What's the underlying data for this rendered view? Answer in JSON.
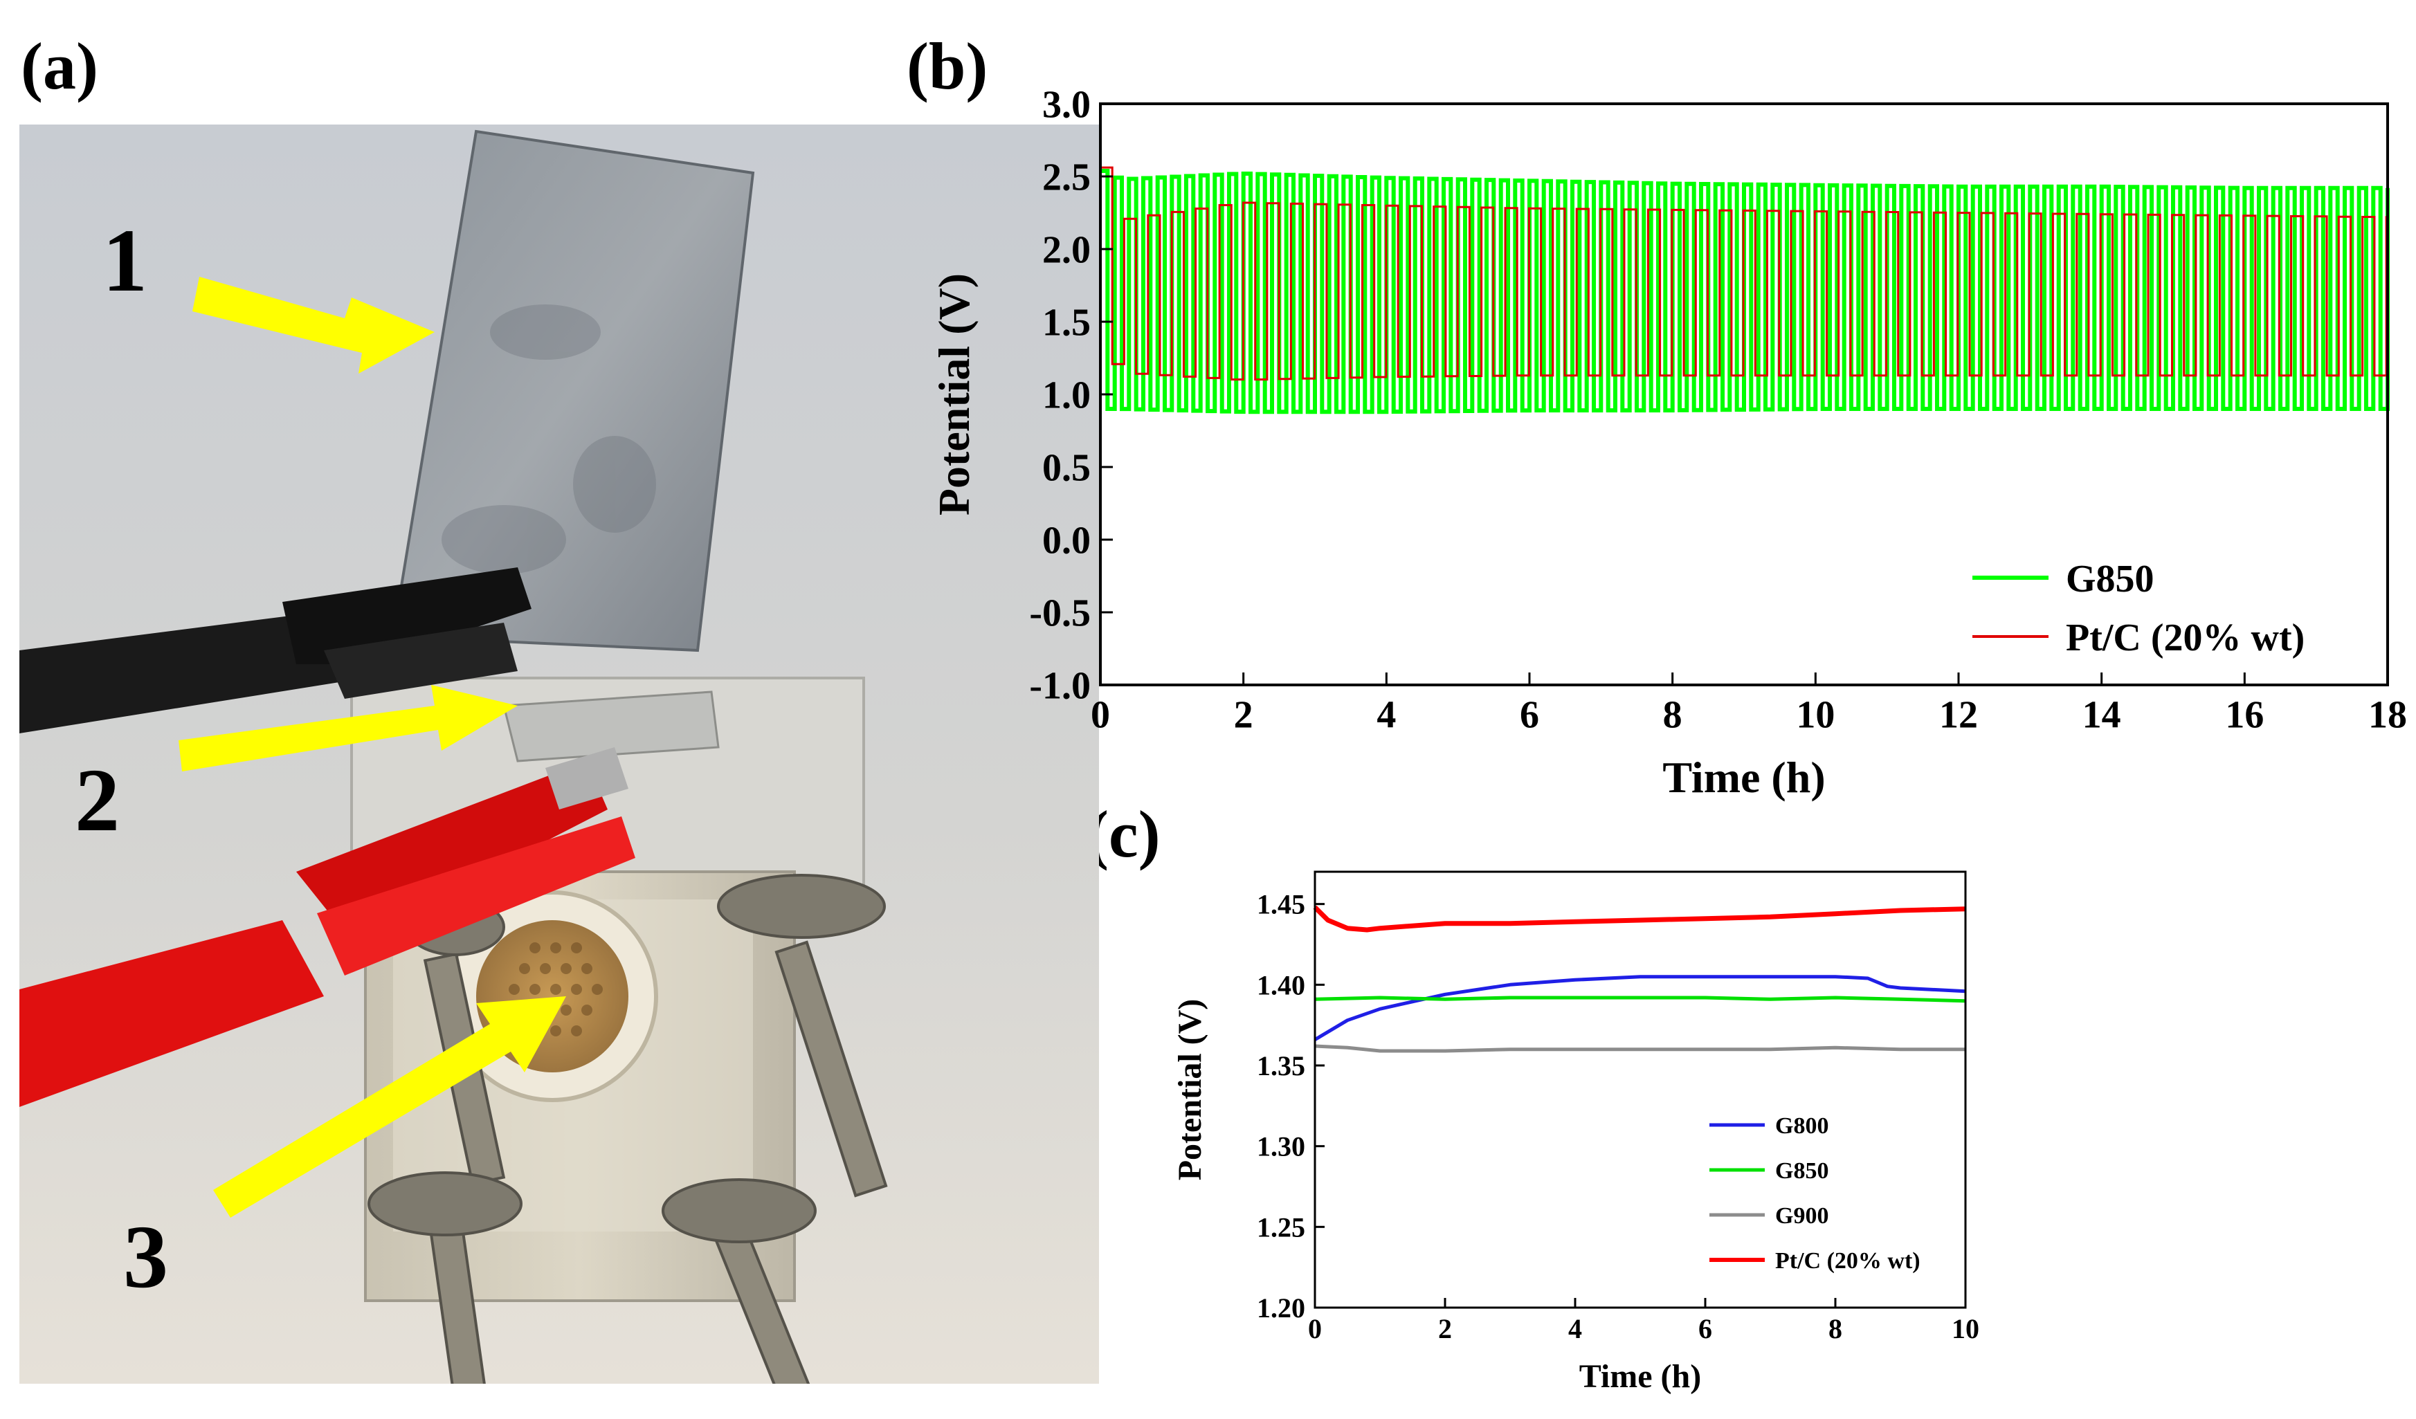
{
  "panels": {
    "a": "(a)",
    "b": "(b)",
    "c": "(c)"
  },
  "photo": {
    "labels": [
      "1",
      "2",
      "3"
    ],
    "colors": {
      "arrow": "#ffff00",
      "clip_red": "#e01010",
      "clip_black": "#1a1a1a"
    }
  },
  "chart_data": [
    {
      "id": "b",
      "type": "line",
      "xlabel": "Time (h)",
      "ylabel": "Potential (V)",
      "xlim": [
        0,
        18
      ],
      "ylim": [
        -1.0,
        3.0
      ],
      "xticks": [
        "0",
        "2",
        "4",
        "6",
        "8",
        "10",
        "12",
        "14",
        "16",
        "18"
      ],
      "yticks": [
        "-1.0",
        "-0.5",
        "0.0",
        "0.5",
        "1.0",
        "1.5",
        "2.0",
        "2.5",
        "3.0"
      ],
      "legend_position": "bottom-right",
      "series": [
        {
          "name": "G850",
          "color": "#00ff00",
          "style": "square-wave cycling",
          "cycle_period_h": 0.2,
          "x": [
            0,
            0.3,
            2,
            4,
            6,
            8,
            10,
            12,
            14,
            16,
            18
          ],
          "upper": [
            2.55,
            2.48,
            2.52,
            2.49,
            2.47,
            2.45,
            2.44,
            2.43,
            2.43,
            2.42,
            2.42
          ],
          "lower": [
            0.9,
            0.9,
            0.88,
            0.88,
            0.89,
            0.89,
            0.9,
            0.9,
            0.9,
            0.9,
            0.9
          ]
        },
        {
          "name": "Pt/C (20% wt)",
          "color": "#e00000",
          "style": "square-wave cycling",
          "cycle_period_h": 0.333,
          "x": [
            0,
            0.3,
            2,
            4,
            6,
            8,
            10,
            12,
            14,
            16,
            18
          ],
          "upper": [
            2.7,
            2.2,
            2.32,
            2.3,
            2.28,
            2.27,
            2.26,
            2.25,
            2.24,
            2.23,
            2.22
          ],
          "lower": [
            1.5,
            1.15,
            1.1,
            1.12,
            1.13,
            1.13,
            1.13,
            1.13,
            1.13,
            1.13,
            1.13
          ]
        }
      ]
    },
    {
      "id": "c",
      "type": "line",
      "xlabel": "Time (h)",
      "ylabel": "Potential (V)",
      "xlim": [
        0,
        10
      ],
      "ylim": [
        1.2,
        1.47
      ],
      "xticks": [
        "0",
        "2",
        "4",
        "6",
        "8",
        "10"
      ],
      "yticks": [
        "1.20",
        "1.25",
        "1.30",
        "1.35",
        "1.40",
        "1.45"
      ],
      "legend_position": "bottom-right",
      "series": [
        {
          "name": "G800",
          "color": "#1f1fe6",
          "x": [
            0,
            0.5,
            1,
            2,
            3,
            4,
            5,
            6,
            7,
            8,
            8.5,
            8.8,
            9,
            10
          ],
          "y": [
            1.366,
            1.378,
            1.385,
            1.394,
            1.4,
            1.403,
            1.405,
            1.405,
            1.405,
            1.405,
            1.404,
            1.399,
            1.398,
            1.396
          ]
        },
        {
          "name": "G850",
          "color": "#00e000",
          "x": [
            0,
            1,
            2,
            3,
            4,
            5,
            6,
            7,
            8,
            9,
            10
          ],
          "y": [
            1.391,
            1.392,
            1.391,
            1.392,
            1.392,
            1.392,
            1.392,
            1.391,
            1.392,
            1.391,
            1.39
          ]
        },
        {
          "name": "G900",
          "color": "#8c8c8c",
          "x": [
            0,
            0.5,
            1,
            2,
            3,
            4,
            5,
            6,
            7,
            8,
            9,
            10
          ],
          "y": [
            1.362,
            1.361,
            1.359,
            1.359,
            1.36,
            1.36,
            1.36,
            1.36,
            1.36,
            1.361,
            1.36,
            1.36
          ]
        },
        {
          "name": "Pt/C (20% wt)",
          "color": "#ff0000",
          "x": [
            0,
            0.2,
            0.5,
            0.8,
            1,
            2,
            3,
            4,
            5,
            6,
            7,
            8,
            9,
            10
          ],
          "y": [
            1.448,
            1.44,
            1.435,
            1.434,
            1.435,
            1.438,
            1.438,
            1.439,
            1.44,
            1.441,
            1.442,
            1.444,
            1.446,
            1.447
          ]
        }
      ]
    }
  ]
}
